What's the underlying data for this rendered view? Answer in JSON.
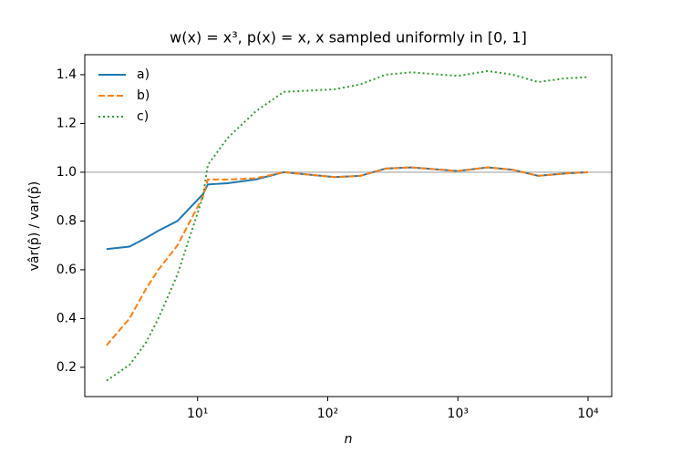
{
  "chart_data": {
    "type": "line",
    "title": "w(x) = x³, p(x) = x, x sampled uniformly in [0, 1]",
    "x_label": "n",
    "y_label": "vâr(p̂) / var(p̂)",
    "x": [
      2,
      3,
      4,
      5,
      7,
      11,
      12,
      17,
      28,
      46,
      113,
      178,
      279,
      437,
      1000,
      1695,
      2636,
      4135,
      6689,
      10000
    ],
    "series": [
      {
        "name": "a)",
        "color": "#1f77b4",
        "style": "solid",
        "values": [
          0.685,
          0.695,
          0.73,
          0.76,
          0.8,
          0.91,
          0.95,
          0.955,
          0.97,
          1.0,
          0.98,
          0.985,
          1.015,
          1.02,
          1.005,
          1.02,
          1.01,
          0.985,
          0.995,
          1.0
        ]
      },
      {
        "name": "b)",
        "color": "#ff7f0e",
        "style": "dashed",
        "values": [
          0.29,
          0.4,
          0.52,
          0.6,
          0.7,
          0.9,
          0.97,
          0.97,
          0.975,
          1.0,
          0.98,
          0.985,
          1.015,
          1.02,
          1.005,
          1.02,
          1.01,
          0.985,
          0.995,
          1.0
        ]
      },
      {
        "name": "c)",
        "color": "#2ca02c",
        "style": "dotted",
        "values": [
          0.145,
          0.21,
          0.3,
          0.4,
          0.58,
          0.9,
          1.03,
          1.14,
          1.25,
          1.33,
          1.34,
          1.36,
          1.4,
          1.41,
          1.395,
          1.415,
          1.4,
          1.37,
          1.385,
          1.39
        ]
      }
    ],
    "xlim": [
      1.36,
      15200
    ],
    "x_log": true,
    "xticks": [
      {
        "value": 10,
        "label": "10¹"
      },
      {
        "value": 100,
        "label": "10²"
      },
      {
        "value": 1000,
        "label": "10³"
      },
      {
        "value": 10000,
        "label": "10⁴"
      }
    ],
    "ylim": [
      0.08,
      1.482
    ],
    "yticks": [
      {
        "value": 0.2,
        "label": "0.2"
      },
      {
        "value": 0.4,
        "label": "0.4"
      },
      {
        "value": 0.6,
        "label": "0.6"
      },
      {
        "value": 0.8,
        "label": "0.8"
      },
      {
        "value": 1.0,
        "label": "1.0"
      },
      {
        "value": 1.2,
        "label": "1.2"
      },
      {
        "value": 1.4,
        "label": "1.4"
      }
    ],
    "reference_line": {
      "y": 1.0,
      "color": "#bbbbbb"
    },
    "legend": "upper left"
  }
}
